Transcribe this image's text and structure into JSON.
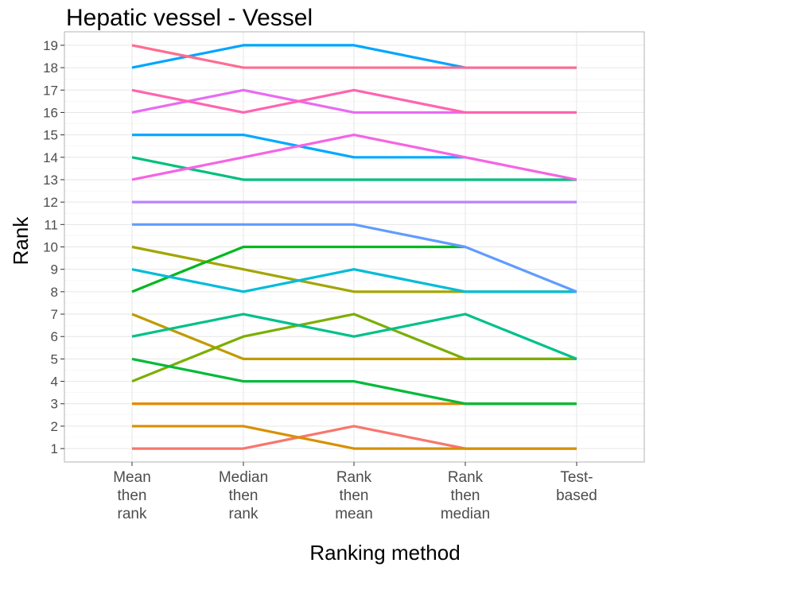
{
  "chart_data": {
    "type": "line",
    "title": "Hepatic vessel - Vessel",
    "xlabel": "Ranking method",
    "ylabel": "Rank",
    "categories": [
      [
        "Mean",
        "then",
        "rank"
      ],
      [
        "Median",
        "then",
        "rank"
      ],
      [
        "Rank",
        "then",
        "mean"
      ],
      [
        "Rank",
        "then",
        "median"
      ],
      [
        "Test-",
        "based"
      ]
    ],
    "y_ticks": [
      1,
      2,
      3,
      4,
      5,
      6,
      7,
      8,
      9,
      10,
      11,
      12,
      13,
      14,
      15,
      16,
      17,
      18,
      19
    ],
    "ylim": [
      0.4,
      19.6
    ],
    "grid": true,
    "legend": "none",
    "series": [
      {
        "color": "#F8766D",
        "values": [
          1,
          1,
          2,
          1,
          1
        ]
      },
      {
        "color": "#E58700",
        "values": [
          3,
          3,
          3,
          3,
          3
        ]
      },
      {
        "color": "#D89000",
        "values": [
          2,
          2,
          1,
          1,
          1
        ]
      },
      {
        "color": "#C09B00",
        "values": [
          7,
          5,
          5,
          5,
          5
        ]
      },
      {
        "color": "#A3A500",
        "values": [
          10,
          9,
          8,
          8,
          8
        ]
      },
      {
        "color": "#7CAE00",
        "values": [
          4,
          6,
          7,
          5,
          5
        ]
      },
      {
        "color": "#00BA38",
        "values": [
          5,
          4,
          4,
          3,
          3
        ]
      },
      {
        "color": "#00B81F",
        "values": [
          8,
          10,
          10,
          10,
          null
        ]
      },
      {
        "color": "#00C08B",
        "values": [
          6,
          7,
          6,
          7,
          5
        ]
      },
      {
        "color": "#00BF7D",
        "values": [
          14,
          13,
          13,
          13,
          13
        ]
      },
      {
        "color": "#00BCD8",
        "values": [
          9,
          8,
          9,
          8,
          8
        ]
      },
      {
        "color": "#00A9FF",
        "values": [
          15,
          15,
          14,
          14,
          null
        ]
      },
      {
        "color": "#00A5FF",
        "values": [
          18,
          19,
          19,
          18,
          18
        ]
      },
      {
        "color": "#619CFF",
        "values": [
          11,
          11,
          11,
          10,
          8
        ]
      },
      {
        "color": "#B983FF",
        "values": [
          12,
          12,
          12,
          12,
          12
        ]
      },
      {
        "color": "#E76BF3",
        "values": [
          16,
          17,
          16,
          16,
          16
        ]
      },
      {
        "color": "#F564E3",
        "values": [
          13,
          14,
          15,
          14,
          13
        ]
      },
      {
        "color": "#FF64B0",
        "values": [
          17,
          16,
          17,
          16,
          16
        ]
      },
      {
        "color": "#FF6C91",
        "values": [
          19,
          18,
          18,
          18,
          18
        ]
      }
    ]
  }
}
